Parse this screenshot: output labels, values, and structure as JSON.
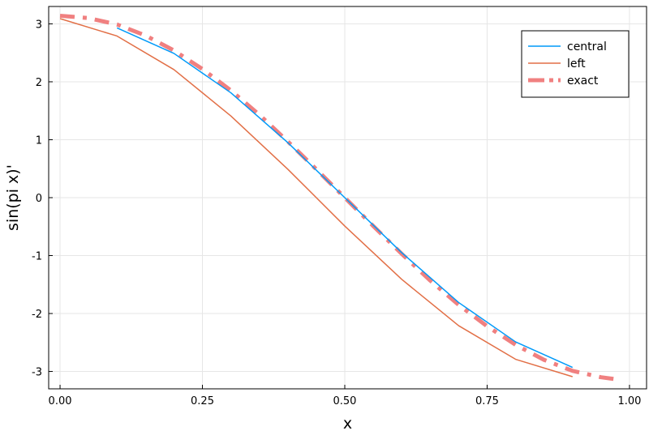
{
  "chart_data": {
    "type": "line",
    "xlabel": "x",
    "ylabel": "sin(pi x)'",
    "xlim": [
      -0.02,
      1.03
    ],
    "ylim": [
      -3.3,
      3.3
    ],
    "xticks": [
      0.0,
      0.25,
      0.5,
      0.75,
      1.0
    ],
    "xtick_labels": [
      "0.00",
      "0.25",
      "0.50",
      "0.75",
      "1.00"
    ],
    "yticks": [
      -3,
      -2,
      -1,
      0,
      1,
      2,
      3
    ],
    "ytick_labels": [
      "-3",
      "-2",
      "-1",
      "0",
      "1",
      "2",
      "3"
    ],
    "grid": true,
    "legend_position": "top-right",
    "series": [
      {
        "name": "central",
        "color": "#009af9",
        "style": "solid",
        "x": [
          0.1,
          0.2,
          0.3,
          0.4,
          0.5,
          0.6,
          0.7,
          0.8,
          0.9
        ],
        "y": [
          2.93,
          2.49,
          1.81,
          0.95,
          0.0,
          -0.95,
          -1.81,
          -2.49,
          -2.93
        ]
      },
      {
        "name": "left",
        "color": "#e26f46",
        "style": "solid",
        "x": [
          0.0,
          0.1,
          0.2,
          0.3,
          0.4,
          0.5,
          0.6,
          0.7,
          0.8,
          0.9
        ],
        "y": [
          3.09,
          2.79,
          2.21,
          1.41,
          0.49,
          -0.49,
          -1.41,
          -2.21,
          -2.79,
          -3.09
        ]
      },
      {
        "name": "exact",
        "color": "#f08080",
        "style": "dashdot",
        "x": [
          0.0,
          0.05,
          0.1,
          0.15,
          0.2,
          0.25,
          0.3,
          0.35,
          0.4,
          0.45,
          0.5,
          0.55,
          0.6,
          0.65,
          0.7,
          0.75,
          0.8,
          0.85,
          0.9,
          0.95,
          0.98
        ],
        "y": [
          3.14,
          3.1,
          2.99,
          2.8,
          2.54,
          2.22,
          1.85,
          1.43,
          0.97,
          0.49,
          0.0,
          -0.49,
          -0.97,
          -1.43,
          -1.85,
          -2.22,
          -2.54,
          -2.8,
          -2.99,
          -3.1,
          -3.14
        ]
      }
    ]
  }
}
